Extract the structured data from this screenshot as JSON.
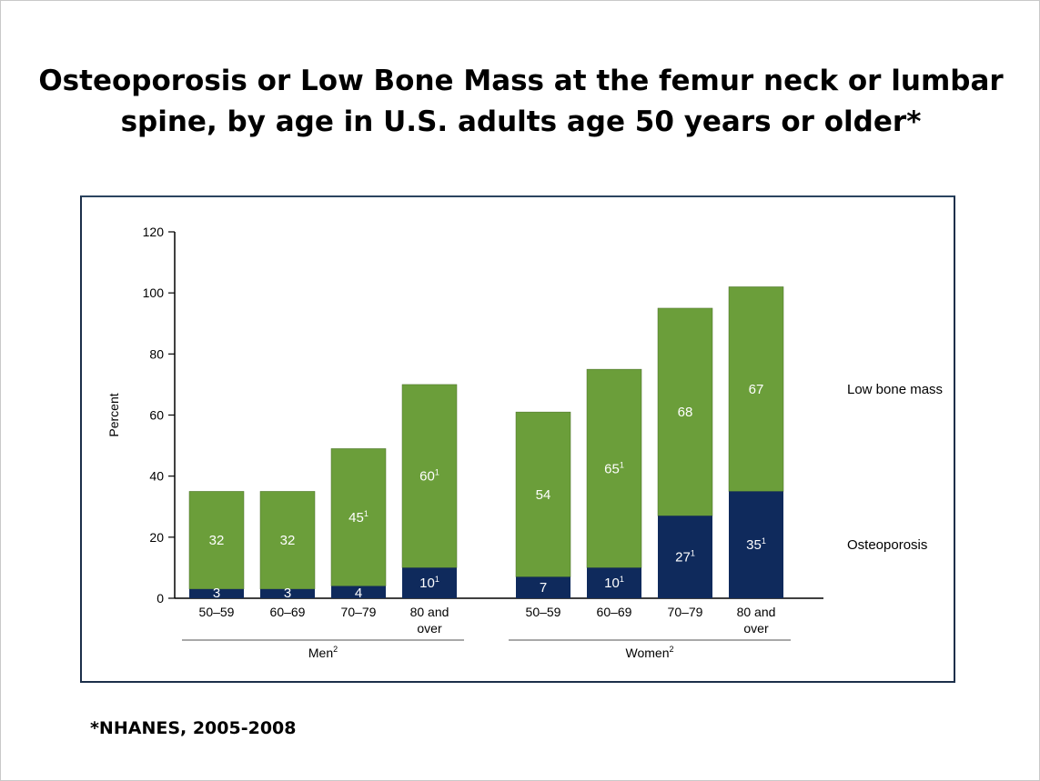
{
  "slide": {
    "title_line1": "Osteoporosis or Low Bone Mass at the femur neck or lumbar",
    "title_line2": "spine, by age in U.S. adults age 50 years or older*",
    "footnote": "*NHANES, 2005-2008"
  },
  "chart_data": {
    "type": "bar",
    "stacked": true,
    "ylabel": "Percent",
    "ylim": [
      0,
      120
    ],
    "yticks": [
      0,
      20,
      40,
      60,
      80,
      100,
      120
    ],
    "groups": [
      {
        "name": "Men",
        "sup": "2",
        "categories": [
          [
            "50–59"
          ],
          [
            "60–69"
          ],
          [
            "70–79"
          ],
          [
            "80 and",
            "over"
          ]
        ],
        "osteoporosis": [
          3,
          3,
          4,
          10
        ],
        "osteoporosis_labels": [
          "3",
          "3",
          "4",
          "10"
        ],
        "osteoporosis_sup": [
          "",
          "",
          "",
          "1"
        ],
        "low_bone_mass": [
          32,
          32,
          45,
          60
        ],
        "low_bone_mass_labels": [
          "32",
          "32",
          "45",
          "60"
        ],
        "low_bone_mass_sup": [
          "",
          "",
          "1",
          "1"
        ]
      },
      {
        "name": "Women",
        "sup": "2",
        "categories": [
          [
            "50–59"
          ],
          [
            "60–69"
          ],
          [
            "70–79"
          ],
          [
            "80 and",
            "over"
          ]
        ],
        "osteoporosis": [
          7,
          10,
          27,
          35
        ],
        "osteoporosis_labels": [
          "7",
          "10",
          "27",
          "35"
        ],
        "osteoporosis_sup": [
          "",
          "1",
          "1",
          "1"
        ],
        "low_bone_mass": [
          54,
          65,
          68,
          67
        ],
        "low_bone_mass_labels": [
          "54",
          "65",
          "68",
          "67"
        ],
        "low_bone_mass_sup": [
          "",
          "1",
          "",
          ""
        ]
      }
    ],
    "series_labels": {
      "low_bone_mass": "Low bone mass",
      "osteoporosis": "Osteoporosis"
    },
    "colors": {
      "low_bone_mass": "#6b9e3a",
      "osteoporosis": "#0f2a5c"
    },
    "grid": false
  }
}
